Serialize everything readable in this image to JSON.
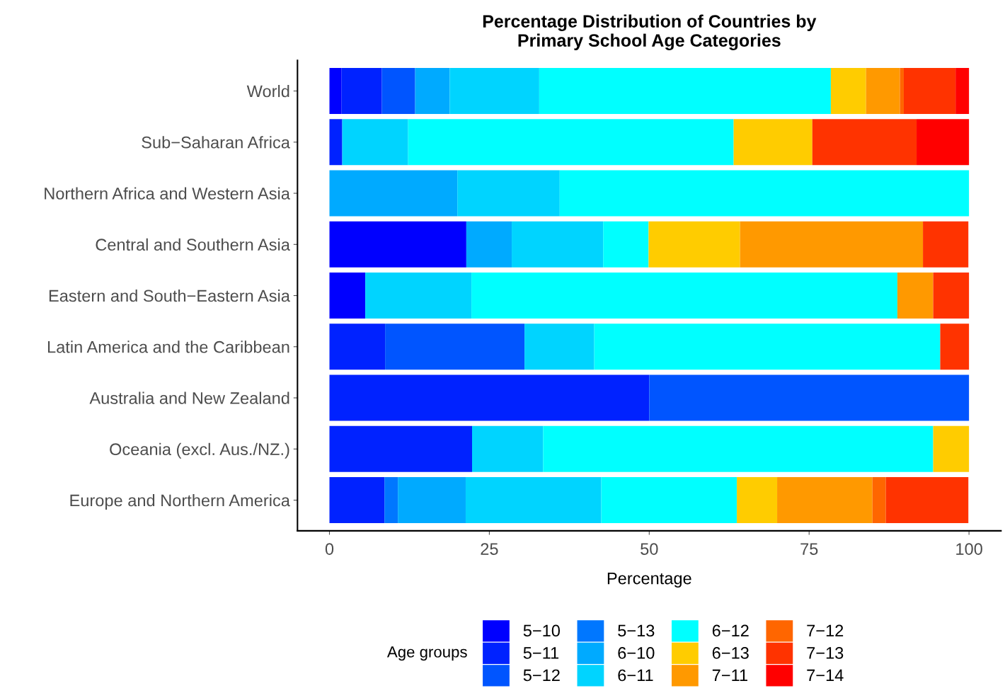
{
  "chart_data": {
    "type": "bar",
    "orientation": "horizontal",
    "stacked": true,
    "title": "Percentage Distribution of Countries by\nPrimary School Age Categories",
    "xlabel": "Percentage",
    "legend_title": "Age groups",
    "legend": "bottom",
    "grid": false,
    "categories": [
      "World",
      "Sub−Saharan Africa",
      "Northern Africa and Western Asia",
      "Central and Southern Asia",
      "Eastern and South−Eastern Asia",
      "Latin America and the Caribbean",
      "Australia and New Zealand",
      "Oceania (excl. Aus./NZ.)",
      "Europe and Northern America"
    ],
    "xlim": [
      -5,
      105
    ],
    "xticks": [
      0,
      25,
      50,
      75,
      100
    ],
    "series": [
      {
        "name": "5−10",
        "color": "#0000ff",
        "values": [
          1.9,
          null,
          null,
          21.4,
          5.6,
          null,
          null,
          null,
          null
        ]
      },
      {
        "name": "5−11",
        "color": "#0022ff",
        "values": [
          6.3,
          2.0,
          null,
          null,
          null,
          8.7,
          50,
          22.3,
          8.6
        ]
      },
      {
        "name": "5−12",
        "color": "#0055ff",
        "values": [
          5.2,
          null,
          null,
          null,
          null,
          21.8,
          50,
          null,
          null
        ]
      },
      {
        "name": "5−13",
        "color": "#0077ff",
        "values": [
          null,
          null,
          null,
          null,
          null,
          null,
          null,
          null,
          2.1
        ]
      },
      {
        "name": "6−10",
        "color": "#00aaff",
        "values": [
          5.4,
          null,
          20.0,
          7.1,
          null,
          null,
          null,
          null,
          10.6
        ]
      },
      {
        "name": "6−11",
        "color": "#00d4ff",
        "values": [
          14.0,
          10.3,
          16.0,
          14.3,
          16.6,
          10.9,
          null,
          11.1,
          21.2
        ]
      },
      {
        "name": "6−12",
        "color": "#00ffff",
        "values": [
          45.6,
          50.9,
          64.0,
          7.1,
          66.6,
          54.1,
          null,
          61.0,
          21.2
        ]
      },
      {
        "name": "6−13",
        "color": "#ffcc00",
        "values": [
          5.5,
          12.3,
          null,
          14.3,
          null,
          null,
          null,
          5.6,
          6.3
        ]
      },
      {
        "name": "7−11",
        "color": "#ff9900",
        "values": [
          5.3,
          null,
          null,
          28.6,
          5.6,
          null,
          null,
          null,
          14.9
        ]
      },
      {
        "name": "7−12",
        "color": "#ff6600",
        "values": [
          0.6,
          null,
          null,
          null,
          null,
          null,
          null,
          null,
          2.1
        ]
      },
      {
        "name": "7−13",
        "color": "#ff3300",
        "values": [
          8.1,
          16.3,
          null,
          7.1,
          5.6,
          4.5,
          null,
          null,
          12.9
        ]
      },
      {
        "name": "7−14",
        "color": "#ff0000",
        "values": [
          2.1,
          8.2,
          null,
          null,
          null,
          null,
          null,
          null,
          null
        ]
      }
    ]
  }
}
